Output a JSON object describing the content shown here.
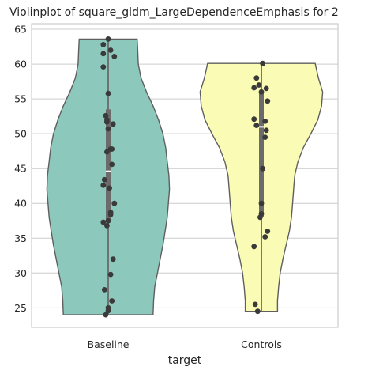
{
  "chart_data": {
    "type": "violin",
    "title": "Violinplot of square_gldm_LargeDependenceEmphasis for 2",
    "xlabel": "target",
    "ylabel": "",
    "ylim": [
      22.2,
      65.8
    ],
    "yticks": [
      25,
      30,
      35,
      40,
      45,
      50,
      55,
      60,
      65
    ],
    "grid": true,
    "categories": [
      "Baseline",
      "Controls"
    ],
    "series": [
      {
        "category": "Baseline",
        "color": "#8dc8bd",
        "min": 24.0,
        "max": 63.6,
        "q1": 37.5,
        "median": 44.6,
        "q3": 53.5,
        "points": [
          63.6,
          62.8,
          62.0,
          61.5,
          61.1,
          59.6,
          55.8,
          52.6,
          52.0,
          51.7,
          51.4,
          50.7,
          47.8,
          47.8,
          47.4,
          45.6,
          43.4,
          42.6,
          42.2,
          40.0,
          38.7,
          38.4,
          37.5,
          37.3,
          36.8,
          32.0,
          29.8,
          27.6,
          26.0,
          25.0,
          24.6,
          24.0
        ],
        "jitter": [
          0.0,
          -0.4,
          0.2,
          -0.4,
          0.5,
          -0.4,
          0.0,
          -0.2,
          -0.1,
          -0.1,
          0.4,
          0.0,
          0.3,
          0.2,
          -0.1,
          0.3,
          -0.3,
          -0.4,
          0.1,
          0.5,
          0.2,
          0.2,
          0.0,
          -0.4,
          -0.1,
          0.4,
          0.2,
          -0.3,
          0.3,
          0.0,
          0.0,
          -0.2
        ],
        "density": [
          [
            24.0,
            0.82
          ],
          [
            26.0,
            0.83
          ],
          [
            28.0,
            0.85
          ],
          [
            30.0,
            0.9
          ],
          [
            32.0,
            0.95
          ],
          [
            34.0,
            1.0
          ],
          [
            36.0,
            1.04
          ],
          [
            38.0,
            1.08
          ],
          [
            40.0,
            1.1
          ],
          [
            42.0,
            1.12
          ],
          [
            44.0,
            1.11
          ],
          [
            46.0,
            1.08
          ],
          [
            48.0,
            1.05
          ],
          [
            50.0,
            1.0
          ],
          [
            52.0,
            0.92
          ],
          [
            54.0,
            0.82
          ],
          [
            56.0,
            0.7
          ],
          [
            58.0,
            0.6
          ],
          [
            60.0,
            0.55
          ],
          [
            62.0,
            0.54
          ],
          [
            63.6,
            0.53
          ]
        ]
      },
      {
        "category": "Controls",
        "color": "#fafbb4",
        "min": 24.5,
        "max": 60.1,
        "q1": 38.0,
        "median": 51.0,
        "q3": 56.2,
        "points": [
          60.1,
          58.0,
          57.0,
          56.6,
          56.5,
          56.0,
          54.7,
          52.1,
          51.8,
          51.2,
          50.5,
          49.5,
          45.0,
          40.0,
          38.5,
          38.0,
          36.0,
          35.2,
          33.8,
          25.5,
          24.5
        ],
        "jitter": [
          0.1,
          -0.4,
          -0.2,
          -0.6,
          0.4,
          0.0,
          0.5,
          -0.6,
          0.3,
          -0.4,
          0.4,
          0.3,
          0.1,
          0.0,
          0.0,
          -0.1,
          0.5,
          0.3,
          -0.6,
          -0.5,
          -0.3
        ],
        "density": [
          [
            24.5,
            0.3
          ],
          [
            26.0,
            0.3
          ],
          [
            28.0,
            0.32
          ],
          [
            30.0,
            0.35
          ],
          [
            32.0,
            0.4
          ],
          [
            34.0,
            0.46
          ],
          [
            36.0,
            0.52
          ],
          [
            38.0,
            0.56
          ],
          [
            40.0,
            0.58
          ],
          [
            42.0,
            0.6
          ],
          [
            44.0,
            0.62
          ],
          [
            46.0,
            0.68
          ],
          [
            48.0,
            0.78
          ],
          [
            50.0,
            0.92
          ],
          [
            52.0,
            1.05
          ],
          [
            54.0,
            1.12
          ],
          [
            56.0,
            1.14
          ],
          [
            58.0,
            1.06
          ],
          [
            60.1,
            1.0
          ]
        ]
      }
    ]
  }
}
